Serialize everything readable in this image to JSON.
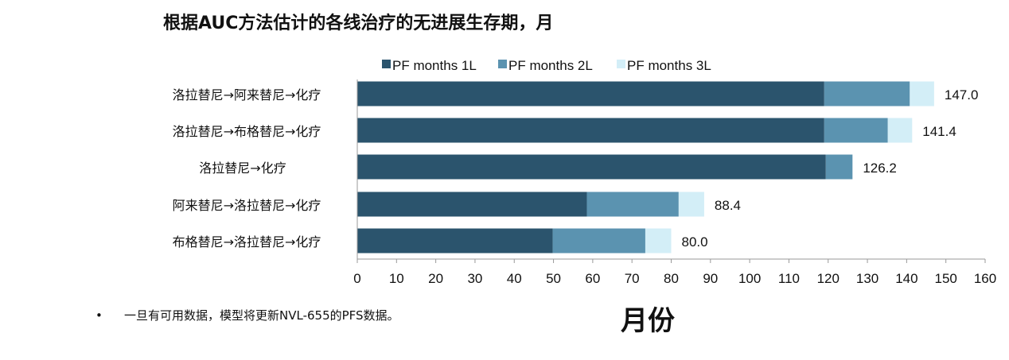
{
  "chart_data": {
    "type": "bar",
    "orientation": "horizontal",
    "stacked": true,
    "title": "根据AUC方法估计的各线治疗的无进展生存期，月",
    "xlabel": "月份",
    "ylabel": "",
    "xlim": [
      0,
      160
    ],
    "xticks": [
      0,
      10,
      20,
      30,
      40,
      50,
      60,
      70,
      80,
      90,
      100,
      110,
      120,
      130,
      140,
      150,
      160
    ],
    "grid": false,
    "legend": "top",
    "categories": [
      "洛拉替尼→阿来替尼→化疗",
      "洛拉替尼→布格替尼→化疗",
      "洛拉替尼→化疗",
      "阿来替尼→洛拉替尼→化疗",
      "布格替尼→洛拉替尼→化疗"
    ],
    "series": [
      {
        "name": "PF months 1L",
        "color": "#2b546d",
        "values": [
          119,
          119,
          119.4,
          58.5,
          49.8
        ]
      },
      {
        "name": "PF months 2L",
        "color": "#5b93b0",
        "values": [
          21.8,
          16.2,
          6.8,
          23.4,
          23.6
        ]
      },
      {
        "name": "PF months 3L",
        "color": "#d3eef7",
        "values": [
          6.2,
          6.2,
          0,
          6.5,
          6.6
        ]
      }
    ],
    "totals": [
      "147.0",
      "141.4",
      "126.2",
      "88.4",
      "80.0"
    ]
  },
  "footnote": {
    "bullet": "•",
    "text": "一旦有可用数据，模型将更新NVL-655的PFS数据。"
  }
}
